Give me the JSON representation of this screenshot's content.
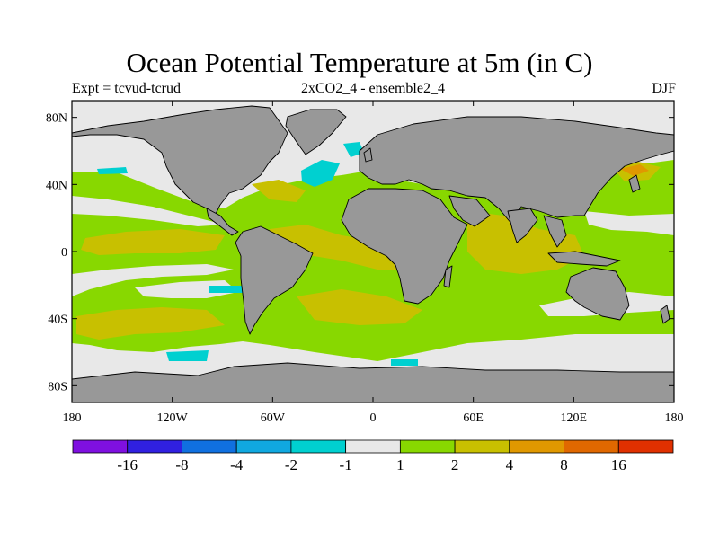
{
  "title": "Ocean Potential Temperature at 5m (in C)",
  "subtitle_left": "Expt = tcvud-tcrud",
  "subtitle_center": "2xCO2_4 - ensemble2_4",
  "subtitle_right": "DJF",
  "colors": {
    "land": "#989898",
    "missing": "#e8e8e8",
    "ocean_base": "#88d800",
    "warm": "#c8c000",
    "cool": "#00d0d0"
  },
  "chart_data": {
    "type": "heatmap",
    "map_projection": "cylindrical-equidistant",
    "lon_ticks": [
      "180",
      "120W",
      "60W",
      "0",
      "60E",
      "120E",
      "180"
    ],
    "lon_values": [
      -180,
      -120,
      -60,
      0,
      60,
      120,
      180
    ],
    "lat_ticks": [
      "80N",
      "40N",
      "0",
      "40S",
      "80S"
    ],
    "lat_values": [
      80,
      40,
      0,
      -40,
      -80
    ],
    "colorbar": {
      "labels": [
        "-16",
        "-8",
        "-4",
        "-2",
        "-1",
        "1",
        "2",
        "4",
        "8",
        "16"
      ],
      "colors": [
        "#7f10e0",
        "#3020e0",
        "#1070e0",
        "#10a8e0",
        "#00d0d0",
        "#e8e8e8",
        "#88d800",
        "#c8c000",
        "#e09800",
        "#e06800",
        "#e03000"
      ]
    }
  }
}
